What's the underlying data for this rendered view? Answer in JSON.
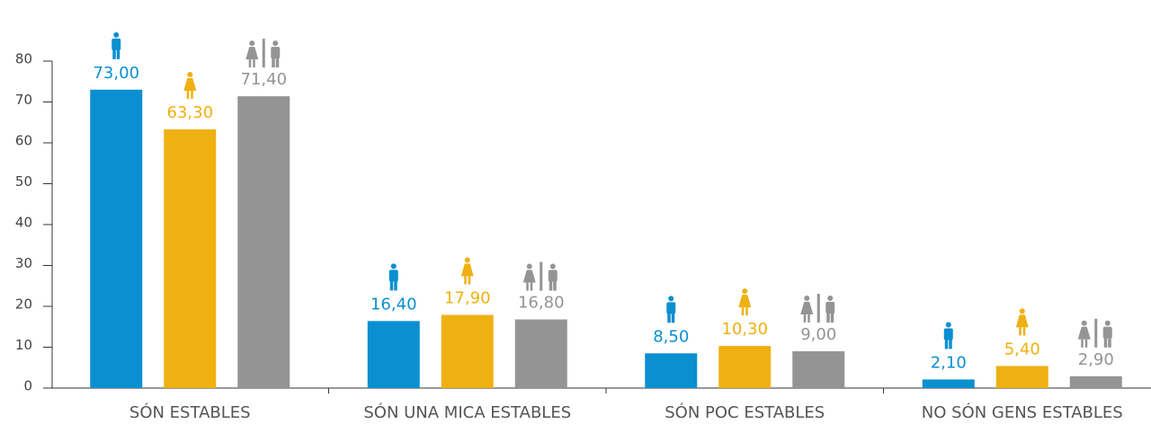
{
  "chart_data": {
    "type": "bar",
    "categories": [
      "SÓN ESTABLES",
      "SÓN UNA MICA ESTABLES",
      "SÓN POC ESTABLES",
      "NO SÓN GENS ESTABLES"
    ],
    "series": [
      {
        "color": "#0a8fd0",
        "values": [
          73.0,
          16.4,
          8.5,
          2.1
        ],
        "value_labels": [
          "73,00",
          "16,40",
          "8,50",
          "2,10"
        ]
      },
      {
        "color": "#efb012",
        "values": [
          63.3,
          17.9,
          10.3,
          5.4
        ],
        "value_labels": [
          "63,30",
          "17,90",
          "10,30",
          "5,40"
        ]
      },
      {
        "color": "#949494",
        "values": [
          71.4,
          16.8,
          9.0,
          2.9
        ],
        "value_labels": [
          "71,40",
          "16,80",
          "9,00",
          "2,90"
        ]
      }
    ],
    "ylim": [
      0,
      80
    ],
    "yticks": [
      0,
      10,
      20,
      30,
      40,
      50,
      60,
      70,
      80
    ]
  }
}
